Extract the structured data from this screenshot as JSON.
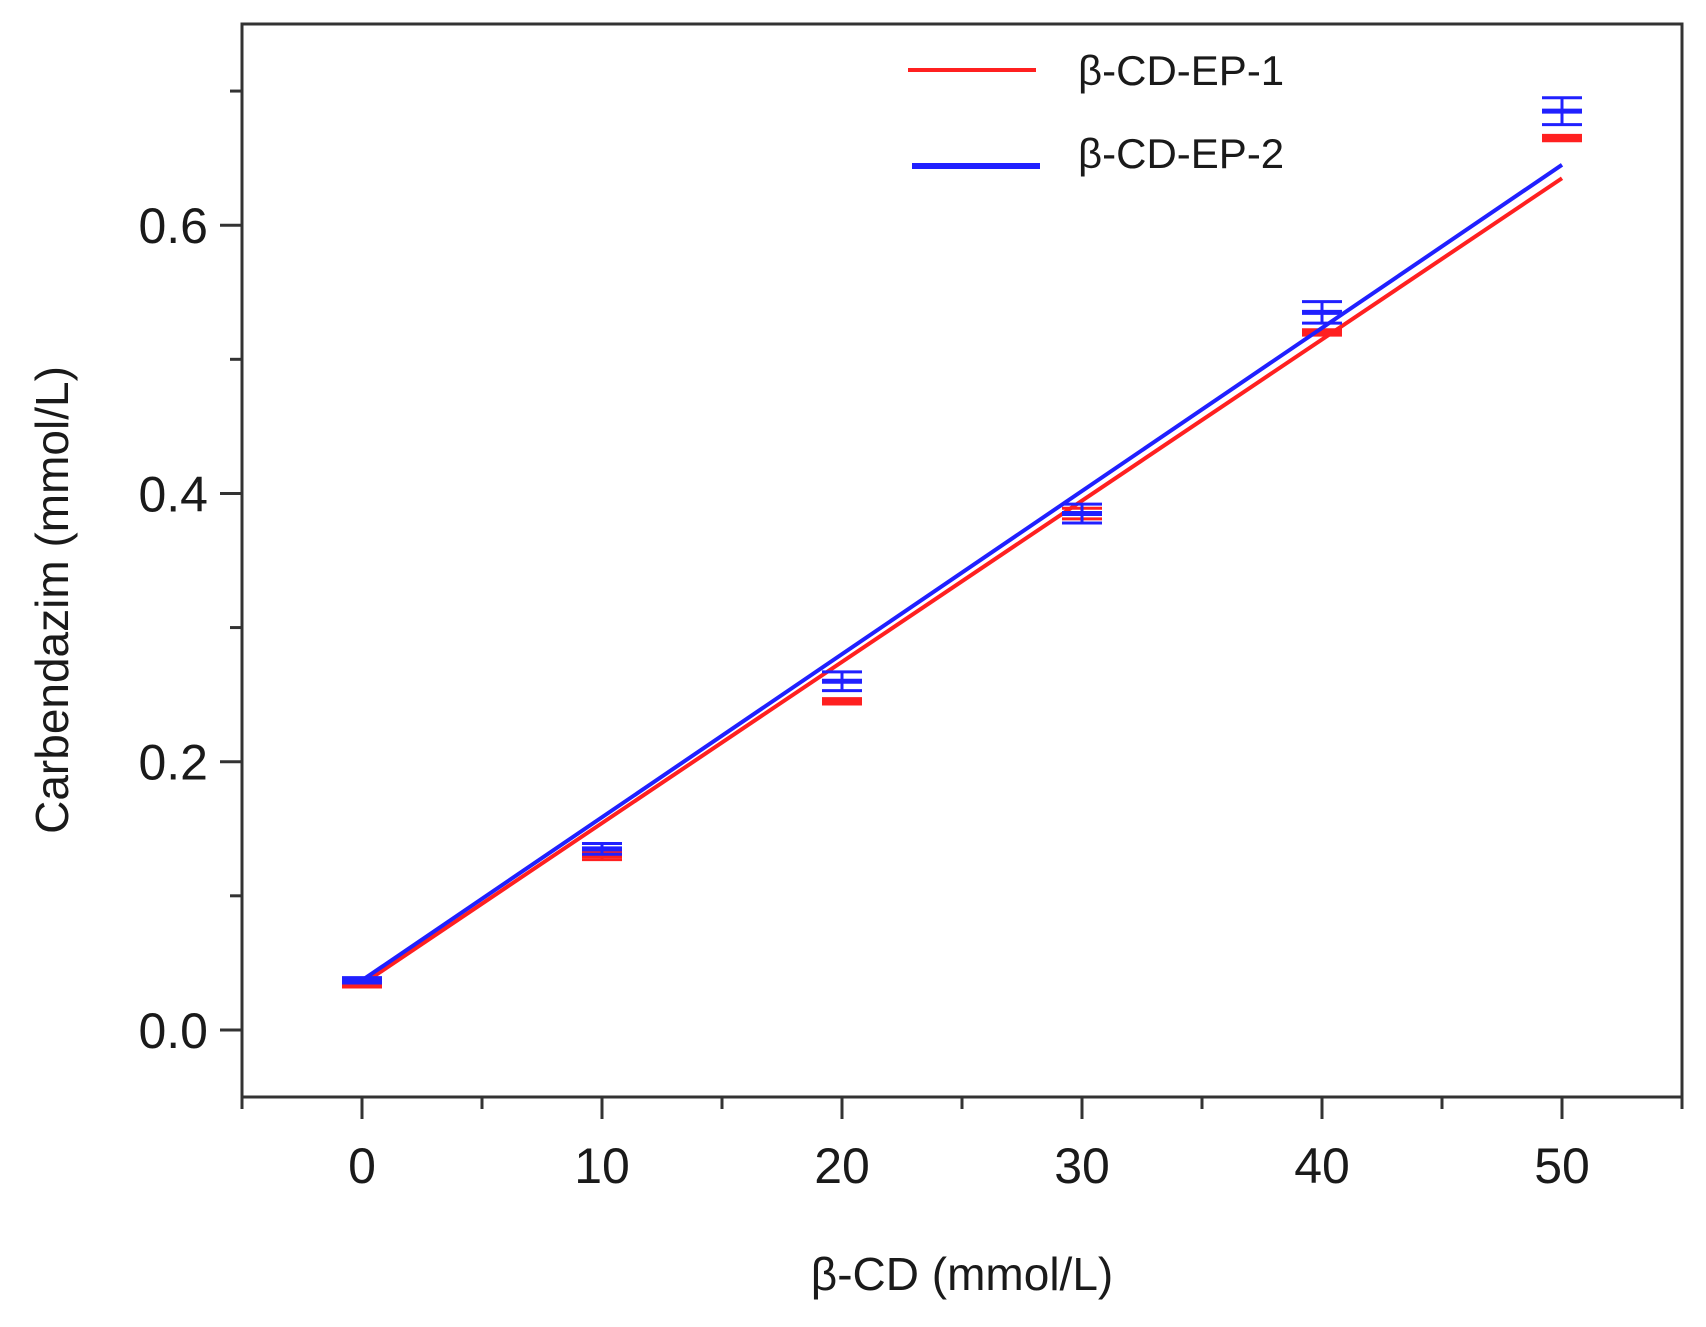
{
  "chart_data": {
    "type": "line",
    "title": "",
    "xlabel": "β-CD (mmol/L)",
    "ylabel": "Carbendazim (mmol/L)",
    "xlim": [
      -5,
      55
    ],
    "ylim": [
      -0.05,
      0.75
    ],
    "xticks": [
      0,
      10,
      20,
      30,
      40,
      50
    ],
    "xtick_labels": [
      "0",
      "10",
      "20",
      "30",
      "40",
      "50"
    ],
    "xminor": [
      -5,
      5,
      15,
      25,
      35,
      45,
      55
    ],
    "yticks": [
      0.0,
      0.2,
      0.4,
      0.6
    ],
    "ytick_labels": [
      "0.0",
      "0.2",
      "0.4",
      "0.6"
    ],
    "yminor": [
      0.1,
      0.3,
      0.5,
      0.7
    ],
    "grid": false,
    "legend_position": "top-right",
    "series": [
      {
        "name": "β-CD-EP-1",
        "color": "#ff2020",
        "x": [
          0,
          10,
          20,
          30,
          40,
          50
        ],
        "y": [
          0.034,
          0.13,
          0.245,
          0.385,
          0.52,
          0.665
        ],
        "err": [
          0.002,
          0.003,
          0.002,
          0.004,
          0.002,
          0.002
        ],
        "fit": {
          "x": [
            0,
            50
          ],
          "y": [
            0.034,
            0.635
          ]
        }
      },
      {
        "name": "β-CD-EP-2",
        "color": "#2020ff",
        "x": [
          0,
          10,
          20,
          30,
          40,
          50
        ],
        "y": [
          0.037,
          0.135,
          0.26,
          0.385,
          0.535,
          0.685
        ],
        "err": [
          0.002,
          0.004,
          0.007,
          0.007,
          0.008,
          0.01
        ],
        "fit": {
          "x": [
            0,
            50
          ],
          "y": [
            0.037,
            0.645
          ]
        }
      }
    ]
  }
}
